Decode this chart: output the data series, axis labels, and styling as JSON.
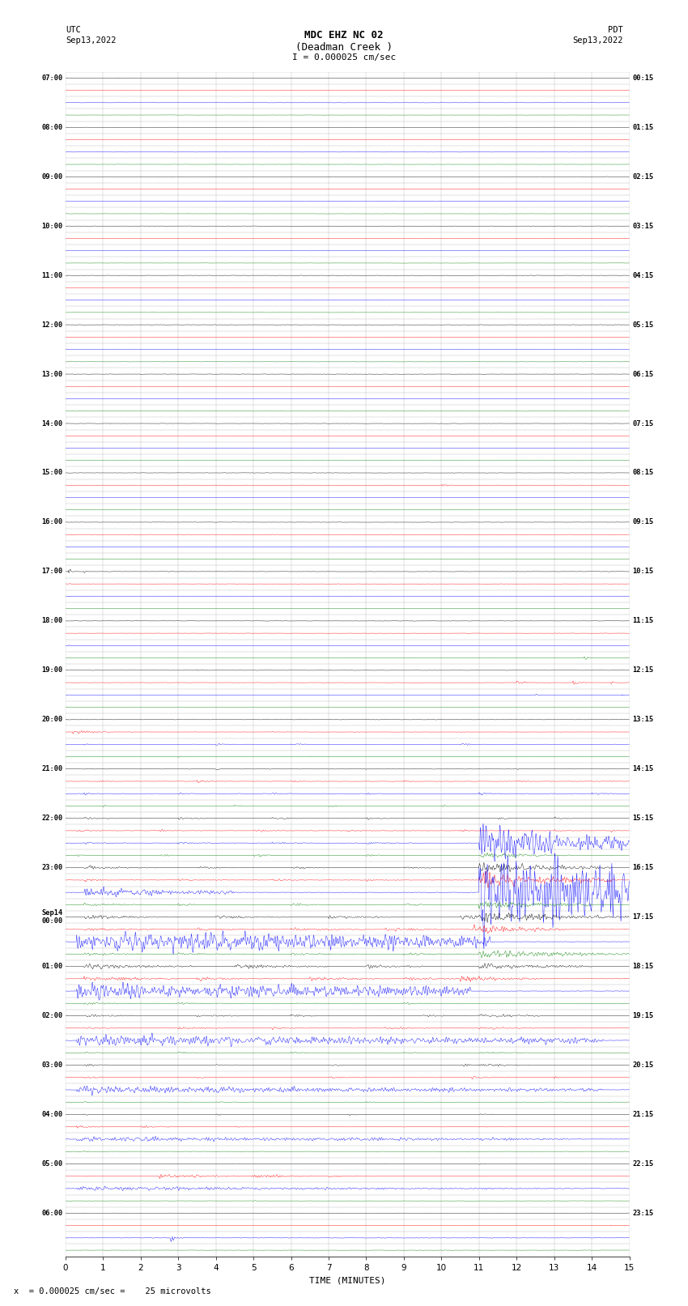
{
  "title_line1": "MDC EHZ NC 02",
  "title_line2": "(Deadman Creek )",
  "title_line3": "I = 0.000025 cm/sec",
  "left_label_top": "UTC",
  "left_label_date": "Sep13,2022",
  "right_label_top": "PDT",
  "right_label_date": "Sep13,2022",
  "xlabel": "TIME (MINUTES)",
  "bottom_note": "x  = 0.000025 cm/sec =    25 microvolts",
  "bg_color": "#ffffff",
  "grid_color": "#bbbbbb",
  "trace_colors_per_group": [
    "black",
    "red",
    "blue",
    "green"
  ],
  "num_hours": 24,
  "traces_per_hour": 4,
  "minutes_per_row": 15,
  "left_times_utc": [
    "07:00",
    "08:00",
    "09:00",
    "10:00",
    "11:00",
    "12:00",
    "13:00",
    "14:00",
    "15:00",
    "16:00",
    "17:00",
    "18:00",
    "19:00",
    "20:00",
    "21:00",
    "22:00",
    "23:00",
    "Sep14\n00:00",
    "01:00",
    "02:00",
    "03:00",
    "04:00",
    "05:00",
    "06:00"
  ],
  "right_times_pdt": [
    "00:15",
    "01:15",
    "02:15",
    "03:15",
    "04:15",
    "05:15",
    "06:15",
    "07:15",
    "08:15",
    "09:15",
    "10:15",
    "11:15",
    "12:15",
    "13:15",
    "14:15",
    "15:15",
    "16:15",
    "17:15",
    "18:15",
    "19:15",
    "20:15",
    "21:15",
    "22:15",
    "23:15"
  ],
  "dpi": 100,
  "figsize": [
    8.5,
    16.13
  ]
}
